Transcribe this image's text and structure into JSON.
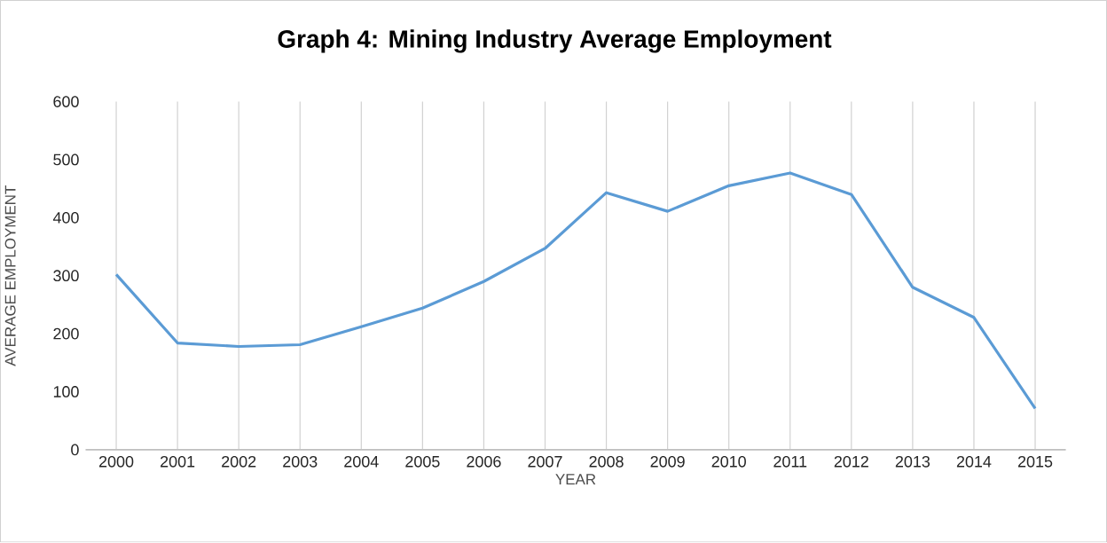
{
  "chart_data": {
    "type": "line",
    "title": "**Graph 4: Mining Industry Average Employment**",
    "xlabel": "YEAR",
    "ylabel": "AVERAGE EMPLOYMENT",
    "categories": [
      "2000",
      "2001",
      "2002",
      "2003",
      "2004",
      "2005",
      "2006",
      "2007",
      "2008",
      "2009",
      "2010",
      "2011",
      "2012",
      "2013",
      "2014",
      "2015"
    ],
    "series": [
      {
        "color": "#5b9bd5",
        "values": [
          302,
          184,
          178,
          181,
          212,
          244,
          290,
          347,
          443,
          411,
          455,
          477,
          440,
          280,
          228,
          71
        ]
      }
    ],
    "ylim": [
      0,
      600
    ],
    "yticks": [
      0,
      100,
      200,
      300,
      400,
      500,
      600
    ],
    "grid": "x",
    "marker": "none",
    "line_style": "solid"
  }
}
